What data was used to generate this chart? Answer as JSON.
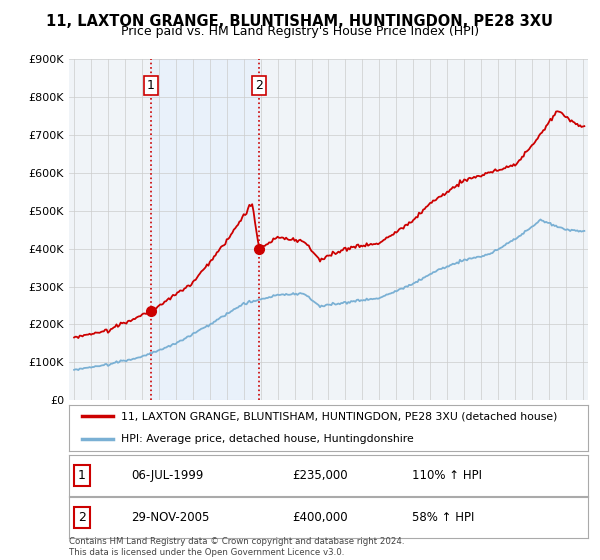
{
  "title": "11, LAXTON GRANGE, BLUNTISHAM, HUNTINGDON, PE28 3XU",
  "subtitle": "Price paid vs. HM Land Registry's House Price Index (HPI)",
  "sale1": {
    "date_str": "06-JUL-1999",
    "price": 235000,
    "label": "1",
    "hpi_pct": "110% ↑ HPI",
    "t": 1999.51
  },
  "sale2": {
    "date_str": "29-NOV-2005",
    "price": 400000,
    "label": "2",
    "hpi_pct": "58% ↑ HPI",
    "t": 2005.91
  },
  "line1_color": "#cc0000",
  "line2_color": "#7ab0d4",
  "shade_color": "#ddeeff",
  "background_color": "#ffffff",
  "chart_bg": "#f8f8f8",
  "legend1": "11, LAXTON GRANGE, BLUNTISHAM, HUNTINGDON, PE28 3XU (detached house)",
  "legend2": "HPI: Average price, detached house, Huntingdonshire",
  "footnote": "Contains HM Land Registry data © Crown copyright and database right 2024.\nThis data is licensed under the Open Government Licence v3.0.",
  "ylim": [
    0,
    900000
  ],
  "yticks": [
    0,
    100000,
    200000,
    300000,
    400000,
    500000,
    600000,
    700000,
    800000,
    900000
  ],
  "ytick_labels": [
    "£0",
    "£100K",
    "£200K",
    "£300K",
    "£400K",
    "£500K",
    "£600K",
    "£700K",
    "£800K",
    "£900K"
  ],
  "hpi_knots": [
    1995,
    1997,
    1999,
    2001,
    2003,
    2005,
    2007,
    2008.5,
    2009.5,
    2011,
    2013,
    2015,
    2016.5,
    2018,
    2019.5,
    2021,
    2022.5,
    2024,
    2025
  ],
  "hpi_vals": [
    80000,
    95000,
    115000,
    150000,
    200000,
    255000,
    278000,
    282000,
    248000,
    258000,
    270000,
    308000,
    345000,
    370000,
    385000,
    425000,
    475000,
    450000,
    445000
  ],
  "prop_knots": [
    1995,
    1997,
    1999.51,
    2002,
    2004,
    2005.5,
    2005.91,
    2007,
    2008.5,
    2009.5,
    2011,
    2013,
    2015,
    2016,
    2018,
    2019.5,
    2021,
    2022.5,
    2023.5,
    2024.5,
    2025
  ],
  "prop_vals": [
    165000,
    185000,
    235000,
    310000,
    420000,
    520000,
    400000,
    430000,
    420000,
    370000,
    400000,
    415000,
    475000,
    520000,
    580000,
    600000,
    620000,
    700000,
    765000,
    730000,
    720000
  ]
}
